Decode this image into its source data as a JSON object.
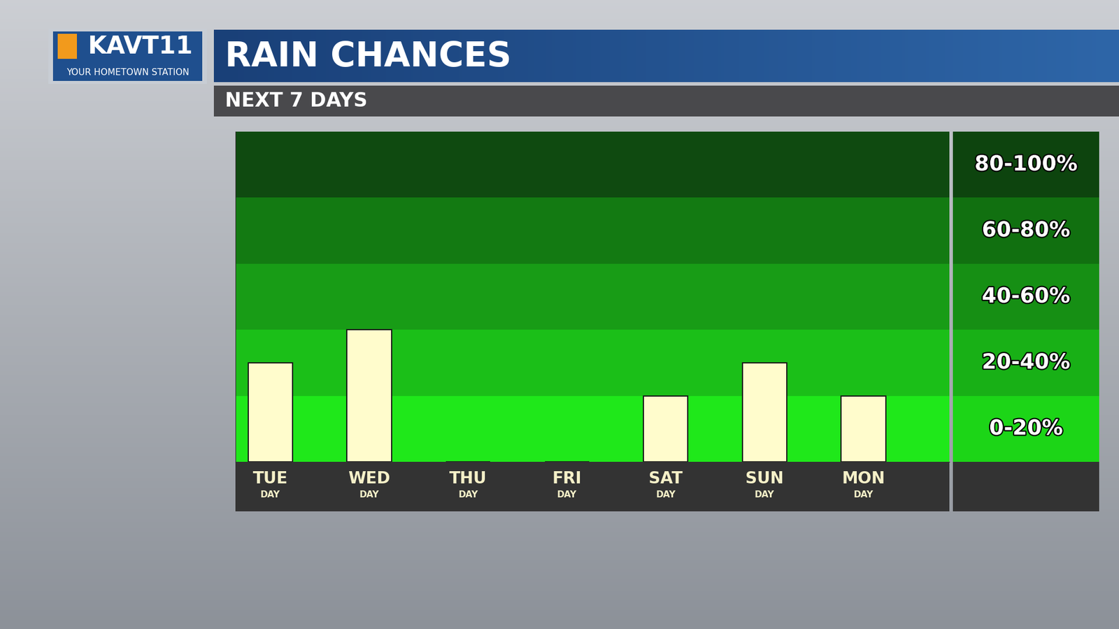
{
  "chart_data": {
    "type": "bar",
    "title": "RAIN CHANCES",
    "subtitle": "NEXT 7 DAYS",
    "logo": "KAVT11",
    "tagline": "YOUR HOMETOWN STATION",
    "categories": [
      "TUE",
      "WED",
      "THU",
      "FRI",
      "SAT",
      "SUN",
      "MON"
    ],
    "period_labels": [
      "DAY",
      "DAY",
      "DAY",
      "DAY",
      "DAY",
      "DAY",
      "DAY"
    ],
    "values": [
      30,
      40,
      0,
      0,
      20,
      30,
      20
    ],
    "color": "#fffccc",
    "ylim": [
      0,
      100
    ],
    "bands": [
      {
        "from": 0,
        "to": 20,
        "label": "0-20%",
        "color": "#1fe81a"
      },
      {
        "from": 20,
        "to": 40,
        "label": "20-40%",
        "color": "#1bbf18"
      },
      {
        "from": 40,
        "to": 60,
        "label": "40-60%",
        "color": "#189c16"
      },
      {
        "from": 60,
        "to": 80,
        "label": "60-80%",
        "color": "#137a12"
      },
      {
        "from": 80,
        "to": 100,
        "label": "80-100%",
        "color": "#0f4a10"
      }
    ],
    "grid": false,
    "tick_labels": "x"
  }
}
